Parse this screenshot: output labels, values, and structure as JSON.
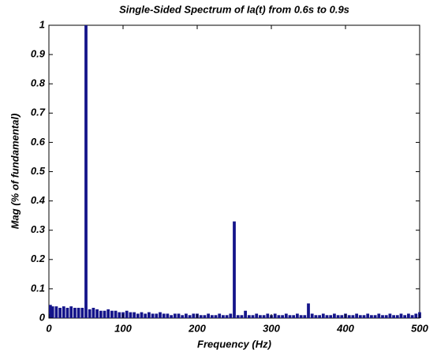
{
  "chart_data": {
    "type": "bar",
    "title": "Single-Sided Spectrum of Ia(t) from 0.6s to 0.9s",
    "x_label": "Frequency (Hz)",
    "y_label": "Mag (% of fundamental)",
    "color": "#14148a",
    "x": [
      0,
      5,
      10,
      15,
      20,
      25,
      30,
      35,
      40,
      45,
      50,
      55,
      60,
      65,
      70,
      75,
      80,
      85,
      90,
      95,
      100,
      105,
      110,
      115,
      120,
      125,
      130,
      135,
      140,
      145,
      150,
      155,
      160,
      165,
      170,
      175,
      180,
      185,
      190,
      195,
      200,
      205,
      210,
      215,
      220,
      225,
      230,
      235,
      240,
      245,
      250,
      255,
      260,
      265,
      270,
      275,
      280,
      285,
      290,
      295,
      300,
      305,
      310,
      315,
      320,
      325,
      330,
      335,
      340,
      345,
      350,
      355,
      360,
      365,
      370,
      375,
      380,
      385,
      390,
      395,
      400,
      405,
      410,
      415,
      420,
      425,
      430,
      435,
      440,
      445,
      450,
      455,
      460,
      465,
      470,
      475,
      480,
      485,
      490,
      495,
      500
    ],
    "values": [
      0.045,
      0.04,
      0.04,
      0.035,
      0.04,
      0.035,
      0.04,
      0.035,
      0.035,
      0.035,
      1,
      0.03,
      0.035,
      0.03,
      0.025,
      0.025,
      0.03,
      0.025,
      0.025,
      0.02,
      0.02,
      0.025,
      0.02,
      0.02,
      0.015,
      0.02,
      0.015,
      0.02,
      0.015,
      0.015,
      0.02,
      0.015,
      0.015,
      0.01,
      0.015,
      0.015,
      0.01,
      0.015,
      0.01,
      0.015,
      0.015,
      0.01,
      0.01,
      0.015,
      0.01,
      0.01,
      0.015,
      0.01,
      0.01,
      0.015,
      0.33,
      0.01,
      0.01,
      0.025,
      0.01,
      0.01,
      0.015,
      0.01,
      0.01,
      0.015,
      0.01,
      0.015,
      0.01,
      0.01,
      0.015,
      0.01,
      0.01,
      0.015,
      0.01,
      0.01,
      0.05,
      0.015,
      0.01,
      0.01,
      0.015,
      0.01,
      0.01,
      0.015,
      0.01,
      0.01,
      0.015,
      0.01,
      0.01,
      0.015,
      0.01,
      0.01,
      0.015,
      0.01,
      0.01,
      0.015,
      0.01,
      0.01,
      0.015,
      0.01,
      0.01,
      0.015,
      0.01,
      0.015,
      0.01,
      0.015,
      0.02
    ],
    "xlim": [
      0,
      500
    ],
    "xticks": [
      0,
      100,
      200,
      300,
      400,
      500
    ],
    "ylim": [
      0,
      1
    ],
    "yticks": [
      0,
      0.1,
      0.2,
      0.3,
      0.4,
      0.5,
      0.6,
      0.7,
      0.8,
      0.9,
      1
    ]
  }
}
